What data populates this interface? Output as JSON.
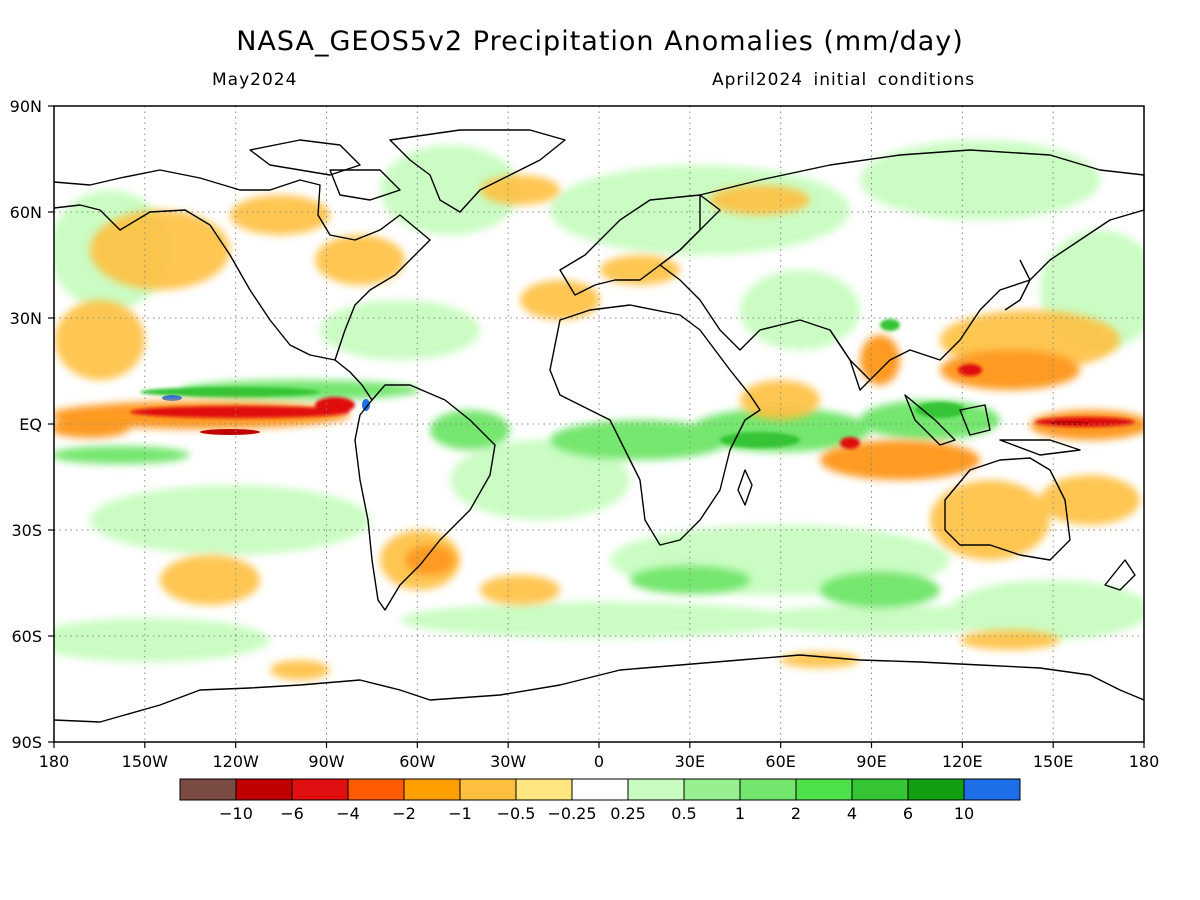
{
  "title": "NASA_GEOS5v2 Precipitation Anomalies (mm/day)",
  "valid_month": "May2024",
  "initial_conditions": "April2024 initial conditions",
  "map": {
    "lat_labels": [
      "90N",
      "60N",
      "30N",
      "EQ",
      "30S",
      "60S",
      "90S"
    ],
    "lon_labels": [
      "180",
      "150W",
      "120W",
      "90W",
      "60W",
      "30W",
      "0",
      "30E",
      "60E",
      "90E",
      "120E",
      "150E",
      "180"
    ],
    "lat_range": [
      -90,
      90
    ],
    "lon_range": [
      -180,
      180
    ],
    "grid": "dotted every 30 degrees"
  },
  "colorbar": {
    "colors": [
      "#7a4b42",
      "#c00000",
      "#e01010",
      "#ff5a00",
      "#ffa000",
      "#ffc040",
      "#ffe680",
      "#ffffff",
      "#c8fcc0",
      "#96f090",
      "#74e66e",
      "#4ee04a",
      "#34c434",
      "#12a012",
      "#1e6ee8"
    ],
    "tick_labels": [
      "−10",
      "−6",
      "−4",
      "−2",
      "−1",
      "−0.5",
      "−0.25",
      "0.25",
      "0.5",
      "1",
      "2",
      "4",
      "6",
      "10"
    ]
  },
  "palette": {
    "dry_strong": "#c00000",
    "dry_mid": "#ff5a00",
    "dry_light": "#ffc040",
    "wet_light": "#c8fcc0",
    "wet_mid": "#74e66e",
    "wet_strong": "#12a012"
  }
}
